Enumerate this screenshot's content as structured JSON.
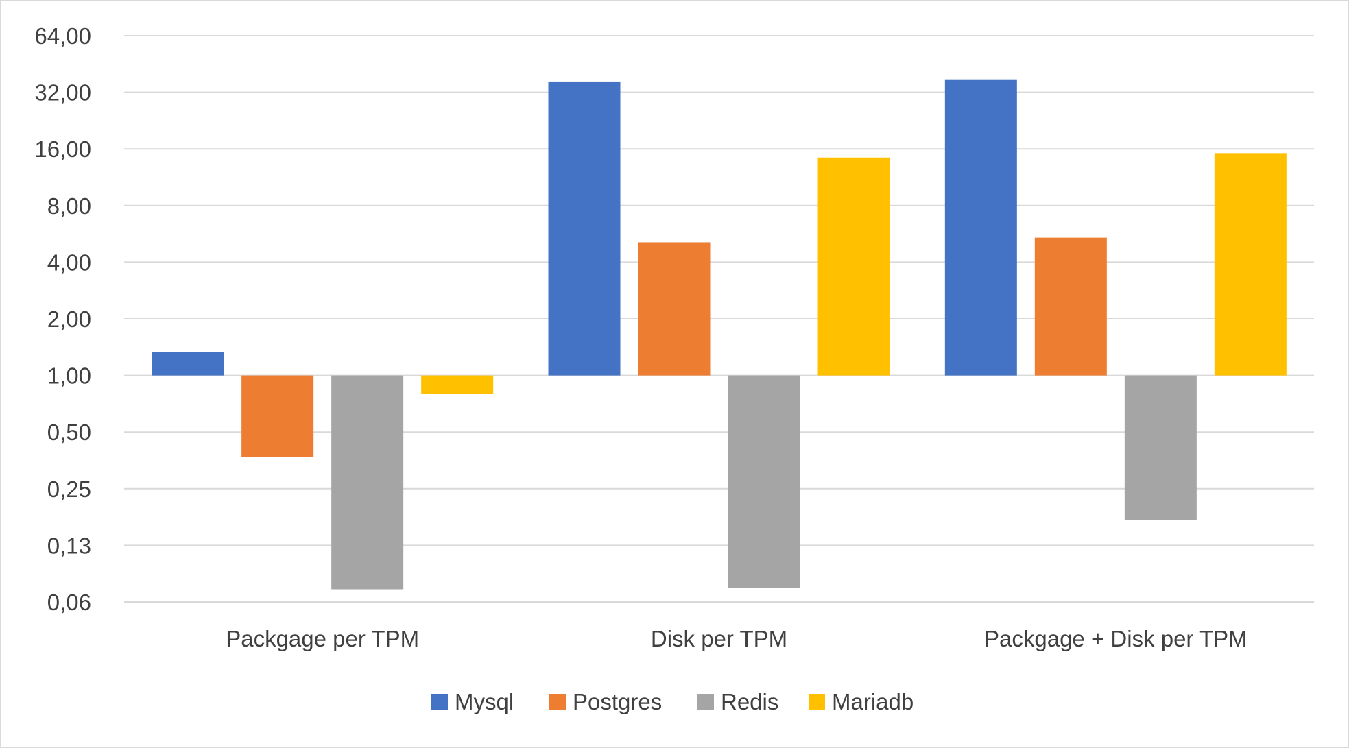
{
  "chart_data": {
    "type": "bar",
    "scale": "log2",
    "baseline": 1,
    "ylim": [
      0.0625,
      64
    ],
    "yticks": [
      {
        "value": 0.0625,
        "label": "0,06"
      },
      {
        "value": 0.125,
        "label": "0,13"
      },
      {
        "value": 0.25,
        "label": "0,25"
      },
      {
        "value": 0.5,
        "label": "0,50"
      },
      {
        "value": 1,
        "label": "1,00"
      },
      {
        "value": 2,
        "label": "2,00"
      },
      {
        "value": 4,
        "label": "4,00"
      },
      {
        "value": 8,
        "label": "8,00"
      },
      {
        "value": 16,
        "label": "16,00"
      },
      {
        "value": 32,
        "label": "32,00"
      },
      {
        "value": 64,
        "label": "64,00"
      }
    ],
    "categories": [
      "Packgage per TPM",
      "Disk per TPM",
      "Packgage + Disk per TPM"
    ],
    "series": [
      {
        "name": "Mysql",
        "color": "#4472C4",
        "values": [
          1.33,
          36.5,
          37.5
        ]
      },
      {
        "name": "Postgres",
        "color": "#ED7D31",
        "values": [
          0.37,
          5.1,
          5.4
        ]
      },
      {
        "name": "Redis",
        "color": "#A5A5A5",
        "values": [
          0.073,
          0.074,
          0.17
        ]
      },
      {
        "name": "Mariadb",
        "color": "#FFC000",
        "values": [
          0.8,
          14.4,
          15.2
        ]
      }
    ],
    "grid": true,
    "legend": "bottom"
  }
}
